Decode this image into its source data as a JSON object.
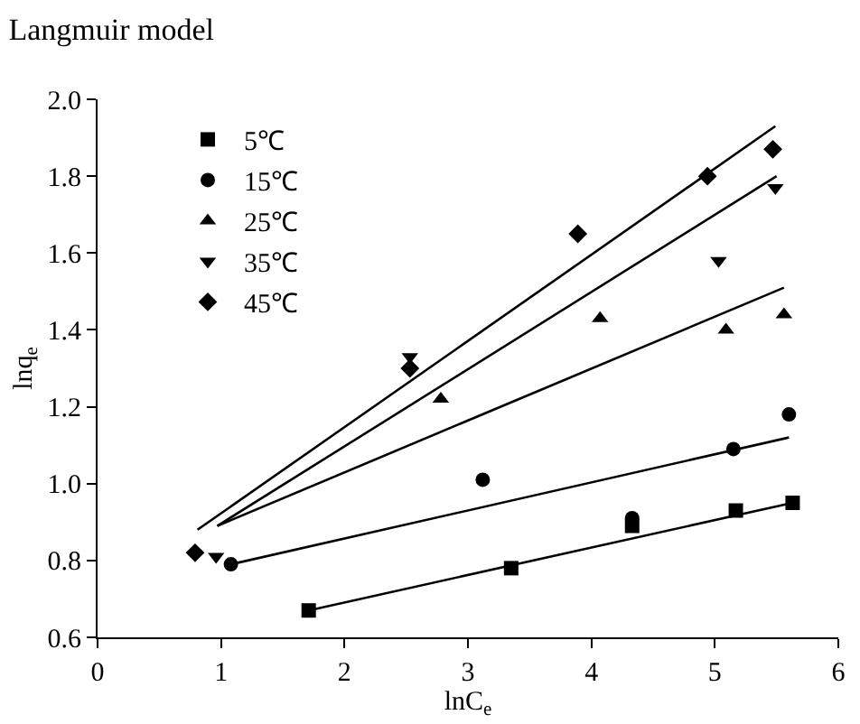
{
  "chart_data": {
    "type": "scatter",
    "title": "Langmuir model",
    "xlabel": "lnC$_{e}$",
    "ylabel": "lnq$_{e}$",
    "xlim": [
      0,
      6
    ],
    "xticks": [
      0,
      1,
      2,
      3,
      4,
      5,
      6
    ],
    "ylim": [
      0.6,
      2.0
    ],
    "yticks": [
      0.6,
      0.8,
      {
        "value": 1.0,
        "label": "1.0"
      },
      1.2,
      1.4,
      1.6,
      1.8,
      {
        "value": 2.0,
        "label": "2.0"
      }
    ],
    "grid": false,
    "legend": "top left",
    "series": [
      {
        "name": "5℃",
        "color": "#000000",
        "marker": "square",
        "x": [
          1.71,
          3.35,
          4.33,
          5.17,
          5.63
        ],
        "values": [
          0.67,
          0.78,
          0.89,
          0.93,
          0.95
        ]
      },
      {
        "name": "15℃",
        "color": "#000000",
        "marker": "circle",
        "x": [
          1.08,
          3.12,
          4.33,
          5.15,
          5.6
        ],
        "values": [
          0.79,
          1.01,
          0.91,
          1.09,
          1.18
        ]
      },
      {
        "name": "25℃",
        "color": "#000000",
        "marker": "triangle",
        "x": [
          2.78,
          4.07,
          5.09,
          5.56
        ],
        "values": [
          1.22,
          1.43,
          1.4,
          1.44
        ]
      },
      {
        "name": "35℃",
        "color": "#000000",
        "marker": "triangle-down",
        "x": [
          0.96,
          2.53,
          5.03,
          5.49
        ],
        "values": [
          0.81,
          1.33,
          1.58,
          1.77
        ]
      },
      {
        "name": "45℃",
        "color": "#000000",
        "marker": "diamond",
        "x": [
          0.79,
          2.53,
          3.89,
          4.94,
          5.47
        ],
        "values": [
          0.82,
          1.3,
          1.65,
          1.8,
          1.87
        ]
      },
      {
        "type": "line",
        "color": "#000000",
        "marker": "none",
        "x": [
          1.71,
          5.63
        ],
        "values": [
          0.67,
          0.95
        ]
      },
      {
        "type": "line",
        "color": "#000000",
        "marker": "none",
        "x": [
          1.08,
          5.6
        ],
        "values": [
          0.79,
          1.12
        ]
      },
      {
        "type": "line",
        "color": "#000000",
        "marker": "none",
        "x": [
          0.97,
          5.56
        ],
        "values": [
          0.89,
          1.51
        ]
      },
      {
        "type": "line",
        "color": "#000000",
        "marker": "none",
        "x": [
          0.97,
          5.5
        ],
        "values": [
          0.89,
          1.8
        ]
      },
      {
        "type": "line",
        "color": "#000000",
        "marker": "none",
        "x": [
          0.81,
          5.49
        ],
        "values": [
          0.88,
          1.93
        ]
      }
    ]
  }
}
